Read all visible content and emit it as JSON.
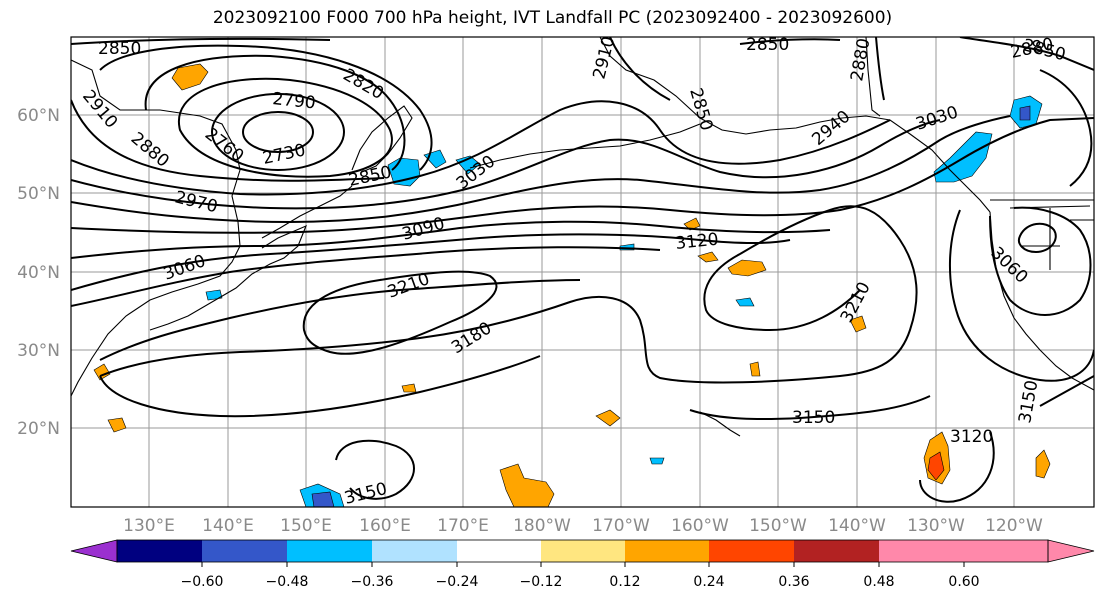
{
  "title": "2023092100 F000 700 hPa height, IVT Landfall PC (2023092400 - 2023092600)",
  "map": {
    "lat_ticks": [
      "60°N",
      "50°N",
      "40°N",
      "30°N",
      "20°N"
    ],
    "lon_ticks": [
      "130°E",
      "140°E",
      "150°E",
      "160°E",
      "170°E",
      "180°W",
      "170°W",
      "160°W",
      "150°W",
      "140°W",
      "130°W",
      "120°W"
    ],
    "gridlines": true,
    "contour_labels": [
      "2850",
      "2910",
      "2790",
      "2820",
      "2880",
      "2760",
      "2730",
      "2850",
      "3030",
      "2970",
      "3090",
      "3060",
      "3210",
      "3180",
      "3120",
      "3150",
      "3150",
      "2850",
      "2880",
      "2850",
      "2880",
      "2940",
      "3030",
      "2910",
      "2850",
      "3060",
      "3210",
      "3150",
      "3120"
    ]
  },
  "colorbar": {
    "ticks": [
      "−0.60",
      "−0.48",
      "−0.36",
      "−0.24",
      "−0.12",
      "0.12",
      "0.24",
      "0.36",
      "0.48",
      "0.60"
    ],
    "colors": [
      "#9b30d0",
      "#000080",
      "#3457c9",
      "#00bfff",
      "#b0e2ff",
      "#ffffff",
      "#ffe680",
      "#ffa500",
      "#ff4500",
      "#b22222",
      "#ff88aa",
      "#ff88aa"
    ]
  }
}
